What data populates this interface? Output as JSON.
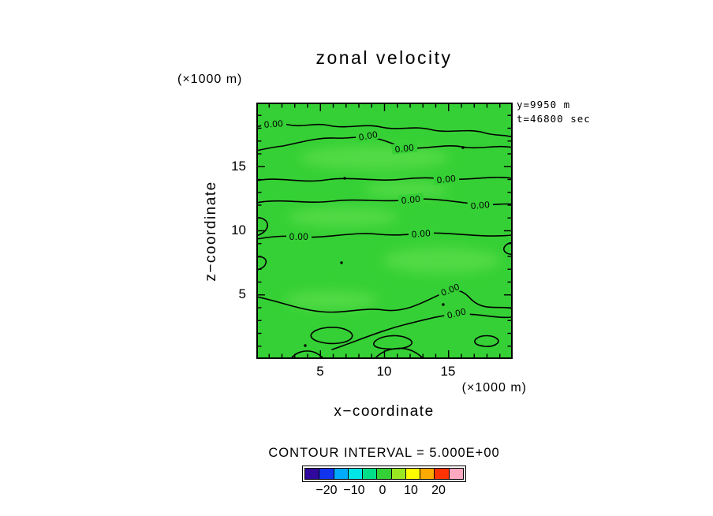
{
  "chart_data": {
    "type": "contour",
    "title": "zonal velocity",
    "xlabel": "x−coordinate",
    "ylabel": "z−coordinate",
    "x_units_label": "(×1000 m)",
    "y_units_label": "(×1000 m)",
    "x_range_m": [
      0,
      20000
    ],
    "z_range_m": [
      0,
      20000
    ],
    "x_tick_labels": [
      "5",
      "10",
      "15"
    ],
    "y_tick_labels": [
      "15",
      "10",
      "5"
    ],
    "x_tick_values_km": [
      5,
      10,
      15
    ],
    "y_tick_values_km": [
      15,
      10,
      5
    ],
    "contour_interval": 5.0,
    "contour_interval_label": "CONTOUR INTERVAL = 5.000E+00",
    "contour_label": "0.00",
    "visible_contour_levels": [
      0.0
    ],
    "annotations": {
      "y_slice": "y=9950 m",
      "time": "t=46800 sec"
    },
    "field_summary": "zonal velocity is approximately 0 m/s over the entire x-z slice; only the 0.00 contour lines appear and the fill is the single green band around zero",
    "fill_colors": {
      "base": "#35d035",
      "light_patch": "#5cdd4c"
    },
    "colorbar": {
      "min": -27.5,
      "max": 27.5,
      "tick_values": [
        -20,
        -10,
        0,
        10,
        20
      ],
      "tick_labels": [
        "−20",
        "−10",
        "0",
        "10",
        "20"
      ],
      "colors": [
        "#30089c",
        "#1133ee",
        "#00aaff",
        "#00e6e6",
        "#00dd88",
        "#35d035",
        "#99e622",
        "#ffff00",
        "#ffaa00",
        "#ff3300",
        "#ffa8c0"
      ]
    }
  }
}
